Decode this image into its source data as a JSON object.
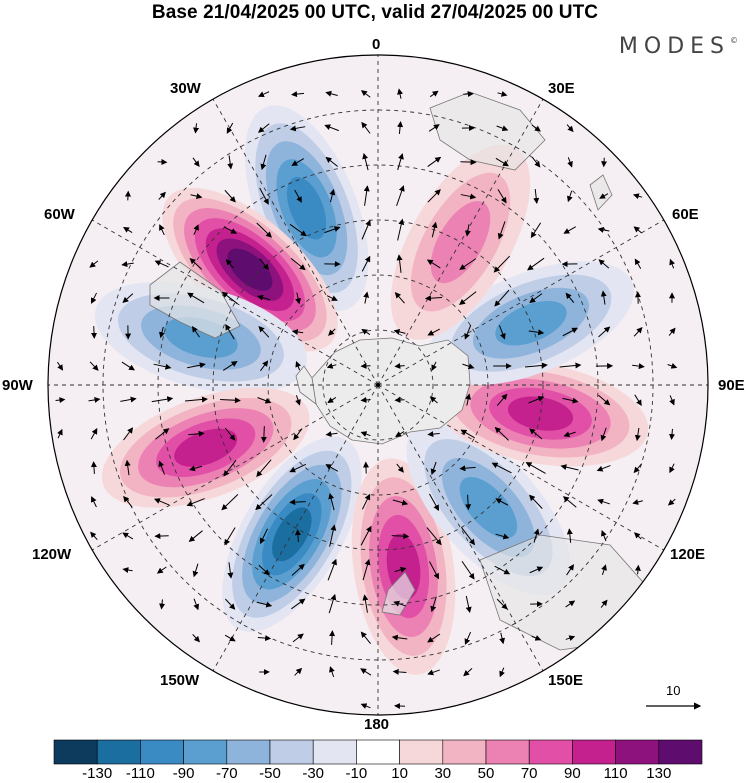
{
  "title": "Base 21/04/2025 00 UTC, valid 27/04/2025 00 UTC",
  "brand": "MODES",
  "brand_mark": "©",
  "longitude_labels": {
    "lon_0": "0",
    "lon_30e": "30E",
    "lon_60e": "60E",
    "lon_90e": "90E",
    "lon_120e": "120E",
    "lon_150e": "150E",
    "lon_180": "180",
    "lon_150w": "150W",
    "lon_120w": "120W",
    "lon_90w": "90W",
    "lon_60w": "60W",
    "lon_30w": "30W"
  },
  "reference_vector": {
    "label": "10",
    "value": 10
  },
  "colorbar": {
    "colors": [
      "#0d3b5e",
      "#1a6ea0",
      "#3a8bc4",
      "#5a9fd0",
      "#8eb4dc",
      "#bfcde6",
      "#e3e6f2",
      "#ffffff",
      "#f7d8da",
      "#f2b3c3",
      "#ec82b4",
      "#e150a6",
      "#c4218f",
      "#8e127e",
      "#5e0d6f"
    ],
    "tick_labels": [
      "-130",
      "-110",
      "-90",
      "-70",
      "-50",
      "-30",
      "-10",
      "10",
      "30",
      "50",
      "70",
      "90",
      "110",
      "130"
    ]
  },
  "anomaly_cells": [
    {
      "lon": -22,
      "lat": -38,
      "value": -100
    },
    {
      "lon": -48,
      "lat": -43,
      "value": 125
    },
    {
      "lon": -75,
      "lat": -40,
      "value": -70
    },
    {
      "lon": -110,
      "lat": -40,
      "value": 95
    },
    {
      "lon": -150,
      "lat": -43,
      "value": -105
    },
    {
      "lon": 172,
      "lat": -40,
      "value": 90
    },
    {
      "lon": 138,
      "lat": -45,
      "value": -80
    },
    {
      "lon": 100,
      "lat": -45,
      "value": 85
    },
    {
      "lon": 68,
      "lat": -45,
      "value": -75
    },
    {
      "lon": 30,
      "lat": -45,
      "value": 55
    }
  ]
}
